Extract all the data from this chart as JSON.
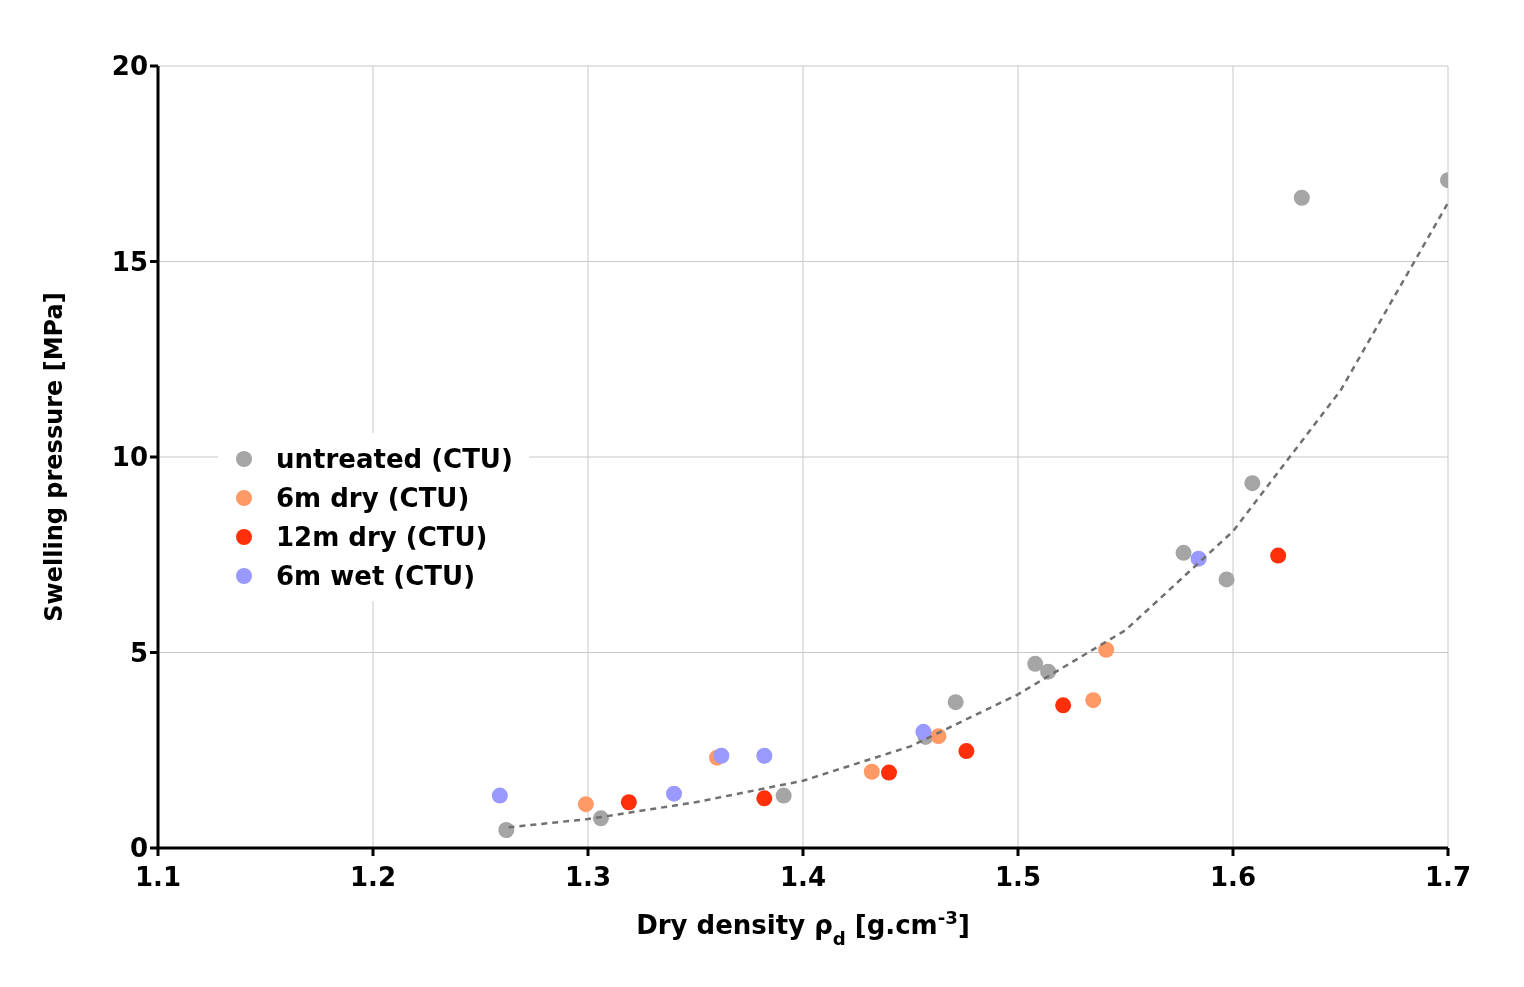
{
  "chart_data": {
    "type": "scatter",
    "xlabel": "Dry density ρ$_{d}$ [g.cm$^{-3}$]",
    "ylabel": "Swelling pressure [MPa]",
    "xlim": [
      1.1,
      1.7
    ],
    "xticks": [
      1.1,
      1.2,
      1.3,
      1.4,
      1.5,
      1.6,
      1.7
    ],
    "ylim": [
      0,
      20
    ],
    "yticks": [
      0,
      5,
      10,
      15,
      20
    ],
    "grid": true,
    "legend": "left",
    "marker": "circle",
    "series": [
      {
        "name": "untreated (CTU)",
        "color": "#a5a5a5",
        "x": [
          1.262,
          1.306,
          1.391,
          1.457,
          1.471,
          1.508,
          1.514,
          1.577,
          1.597,
          1.609,
          1.632,
          1.7
        ],
        "values": [
          0.46,
          0.76,
          1.34,
          2.84,
          3.73,
          4.71,
          4.51,
          7.55,
          6.87,
          9.33,
          16.63,
          17.08
        ]
      },
      {
        "name": "6m dry (CTU)",
        "color": "#ff9966",
        "x": [
          1.299,
          1.36,
          1.432,
          1.463,
          1.535,
          1.541
        ],
        "values": [
          1.12,
          2.31,
          1.95,
          2.86,
          3.78,
          5.07
        ]
      },
      {
        "name": "12m dry (CTU)",
        "color": "#ff2f0a",
        "x": [
          1.319,
          1.382,
          1.44,
          1.476,
          1.521,
          1.621
        ],
        "values": [
          1.17,
          1.27,
          1.93,
          2.48,
          3.65,
          7.48
        ]
      },
      {
        "name": "6m wet (CTU)",
        "color": "#9999ff",
        "x": [
          1.259,
          1.34,
          1.362,
          1.382,
          1.456,
          1.584
        ],
        "values": [
          1.34,
          1.39,
          2.36,
          2.36,
          2.97,
          7.4
        ]
      },
      {
        "type": "line",
        "color": "#707070",
        "line_style": "dashed",
        "marker": "none",
        "x": [
          1.263,
          1.3,
          1.35,
          1.4,
          1.45,
          1.5,
          1.55,
          1.6,
          1.65,
          1.7
        ],
        "values": [
          0.53,
          0.74,
          1.17,
          1.72,
          2.6,
          3.93,
          5.57,
          8.1,
          11.7,
          16.5
        ]
      }
    ]
  }
}
